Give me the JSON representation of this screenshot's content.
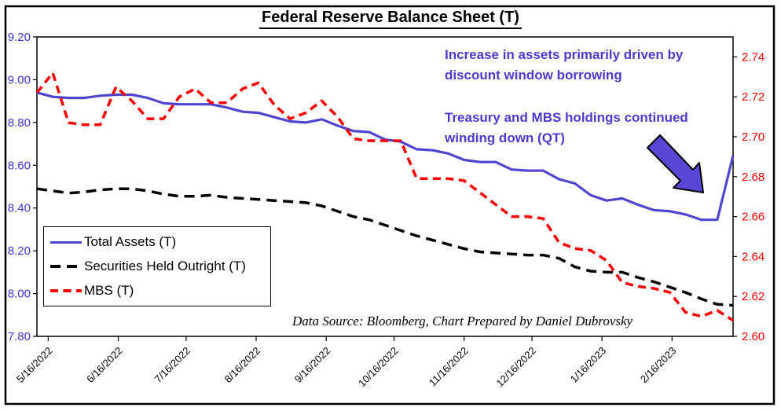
{
  "title": "Federal Reserve Balance Sheet (T)",
  "annotations": [
    "Increase in assets primarily driven by discount window borrowing",
    "Treasury and MBS holdings continued winding down (QT)"
  ],
  "source_note": "Data Source: Bloomberg, Chart Prepared by Daniel Dubrovsky",
  "colors": {
    "total_assets_line": "#4F46CF",
    "securities_line": "#000000",
    "mbs_line": "#FF0000",
    "left_axis_labels": "#3D38C6",
    "right_axis_labels": "#FF0000",
    "annotation_text": "#4C3BC8",
    "arrow_fill": "#5A47D5",
    "frame": "#000000"
  },
  "chart_data": {
    "type": "line",
    "x": [
      "5/11/2022",
      "5/18/2022",
      "5/25/2022",
      "6/1/2022",
      "6/8/2022",
      "6/15/2022",
      "6/22/2022",
      "6/29/2022",
      "7/6/2022",
      "7/13/2022",
      "7/20/2022",
      "7/27/2022",
      "8/3/2022",
      "8/10/2022",
      "8/17/2022",
      "8/24/2022",
      "8/31/2022",
      "9/7/2022",
      "9/14/2022",
      "9/21/2022",
      "9/28/2022",
      "10/5/2022",
      "10/12/2022",
      "10/19/2022",
      "10/26/2022",
      "11/2/2022",
      "11/9/2022",
      "11/16/2022",
      "11/23/2022",
      "11/30/2022",
      "12/7/2022",
      "12/14/2022",
      "12/21/2022",
      "12/28/2022",
      "1/4/2023",
      "1/11/2023",
      "1/18/2023",
      "1/25/2023",
      "2/1/2023",
      "2/8/2023",
      "2/15/2023",
      "2/22/2023",
      "3/1/2023",
      "3/8/2023",
      "3/15/2023"
    ],
    "series": [
      {
        "name": "Total Assets (T)",
        "axis": "left",
        "color": "#4F46CF",
        "style": "solid",
        "width": 3.2,
        "dash": "",
        "values": [
          8.94,
          8.92,
          8.915,
          8.915,
          8.925,
          8.93,
          8.93,
          8.915,
          8.89,
          8.885,
          8.885,
          8.885,
          8.87,
          8.85,
          8.845,
          8.825,
          8.805,
          8.8,
          8.815,
          8.785,
          8.76,
          8.755,
          8.72,
          8.71,
          8.675,
          8.67,
          8.655,
          8.625,
          8.615,
          8.615,
          8.58,
          8.575,
          8.575,
          8.535,
          8.515,
          8.46,
          8.435,
          8.445,
          8.415,
          8.39,
          8.385,
          8.37,
          8.345,
          8.345,
          8.645
        ]
      },
      {
        "name": "Securities Held Outright (T)",
        "axis": "left",
        "color": "#000000",
        "style": "dashed",
        "width": 3.5,
        "dash": "13 8",
        "values": [
          8.49,
          8.48,
          8.47,
          8.475,
          8.485,
          8.49,
          8.49,
          8.48,
          8.465,
          8.455,
          8.455,
          8.46,
          8.45,
          8.445,
          8.44,
          8.435,
          8.43,
          8.425,
          8.41,
          8.385,
          8.36,
          8.345,
          8.32,
          8.295,
          8.27,
          8.25,
          8.23,
          8.21,
          8.195,
          8.19,
          8.185,
          8.18,
          8.18,
          8.165,
          8.125,
          8.105,
          8.1,
          8.1,
          8.075,
          8.055,
          8.03,
          8.005,
          7.975,
          7.95,
          7.945
        ]
      },
      {
        "name": "MBS (T)",
        "axis": "right",
        "color": "#FF0000",
        "style": "dashed",
        "width": 3.5,
        "dash": "10 6.5",
        "values": [
          2.722,
          2.732,
          2.707,
          2.706,
          2.706,
          2.725,
          2.718,
          2.709,
          2.709,
          2.72,
          2.724,
          2.717,
          2.717,
          2.724,
          2.727,
          2.716,
          2.709,
          2.712,
          2.718,
          2.71,
          2.699,
          2.698,
          2.698,
          2.698,
          2.679,
          2.679,
          2.679,
          2.678,
          2.672,
          2.666,
          2.66,
          2.66,
          2.659,
          2.647,
          2.644,
          2.643,
          2.638,
          2.627,
          2.625,
          2.624,
          2.622,
          2.612,
          2.61,
          2.613,
          2.608
        ]
      }
    ],
    "left_axis": {
      "min": 7.8,
      "max": 9.2,
      "tick_labels": [
        "9.20",
        "9.00",
        "8.80",
        "8.60",
        "8.40",
        "8.20",
        "8.00",
        "7.80"
      ]
    },
    "right_axis": {
      "min": 2.6,
      "max": 2.75,
      "tick_labels": [
        "2.74",
        "2.72",
        "2.70",
        "2.68",
        "2.66",
        "2.64",
        "2.62",
        "2.60"
      ]
    },
    "x_ticks": [
      {
        "label": "5/16/2022",
        "pos": 0.714
      },
      {
        "label": "6/16/2022",
        "pos": 5.143
      },
      {
        "label": "7/16/2022",
        "pos": 9.429
      },
      {
        "label": "8/16/2022",
        "pos": 13.857
      },
      {
        "label": "9/16/2022",
        "pos": 18.286
      },
      {
        "label": "10/16/2022",
        "pos": 22.571
      },
      {
        "label": "11/16/2022",
        "pos": 27.0
      },
      {
        "label": "12/16/2022",
        "pos": 31.286
      },
      {
        "label": "1/16/2023",
        "pos": 35.714
      },
      {
        "label": "2/16/2023",
        "pos": 40.143
      }
    ],
    "grid": false,
    "legend_position": "lower-left"
  }
}
